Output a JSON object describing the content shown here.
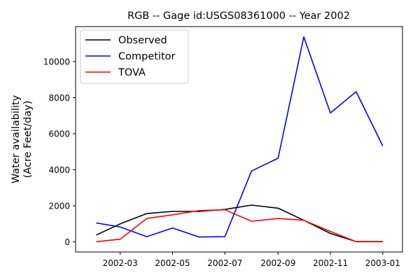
{
  "chart_data": {
    "type": "line",
    "title": "RGB -- Gage id:USGS08361000 -- Year 2002",
    "xlabel": "",
    "ylabel_lines": [
      "Water availability",
      "(Acre Feet/day)"
    ],
    "x": [
      "2002-02-01",
      "2002-03-01",
      "2002-04-01",
      "2002-05-01",
      "2002-06-01",
      "2002-07-01",
      "2002-08-01",
      "2002-09-01",
      "2002-10-01",
      "2002-11-01",
      "2002-12-01",
      "2003-01-01"
    ],
    "series": [
      {
        "name": "Observed",
        "color": "#000000",
        "values": [
          380,
          1000,
          1570,
          1690,
          1690,
          1800,
          2040,
          1870,
          1200,
          470,
          20,
          20
        ]
      },
      {
        "name": "Competitor",
        "color": "#0000ff",
        "values": [
          1050,
          830,
          290,
          770,
          270,
          290,
          3930,
          4640,
          11370,
          7150,
          8330,
          5320
        ]
      },
      {
        "name": "TOVA",
        "color": "#ff0000",
        "values": [
          10,
          150,
          1300,
          1500,
          1740,
          1780,
          1150,
          1300,
          1200,
          580,
          10,
          10
        ]
      }
    ],
    "x_ticks": [
      "2002-03",
      "2002-05",
      "2002-07",
      "2002-09",
      "2002-11",
      "2003-01"
    ],
    "x_tick_dates": [
      "2002-03-01",
      "2002-05-01",
      "2002-07-01",
      "2002-09-01",
      "2002-11-01",
      "2003-01-01"
    ],
    "xlim": [
      "2002-01-08",
      "2003-01-24"
    ],
    "y_ticks": [
      0,
      2000,
      4000,
      6000,
      8000,
      10000
    ],
    "ylim": [
      -560,
      11940
    ],
    "legend_position": "upper-left",
    "grid": false
  }
}
